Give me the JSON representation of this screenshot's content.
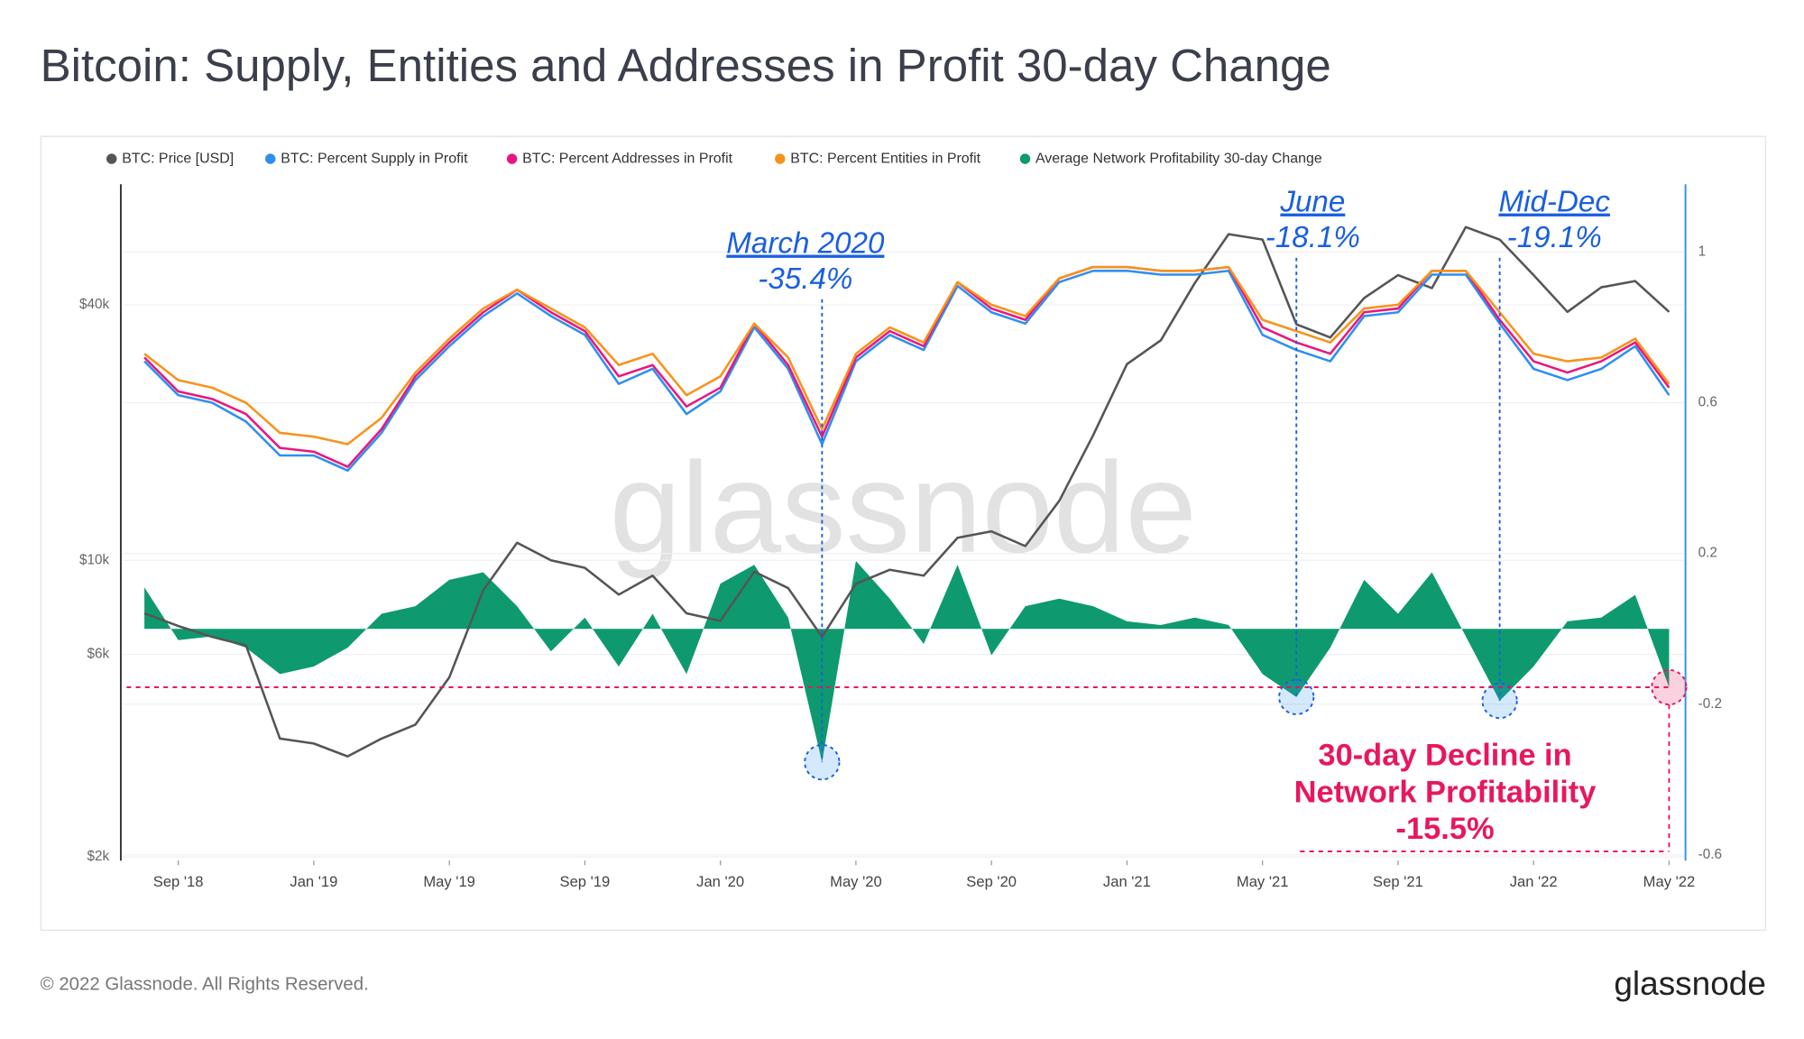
{
  "header": {
    "title": "Bitcoin: Supply, Entities and Addresses in Profit 30-day Change"
  },
  "chart_data": {
    "type": "line",
    "watermark": "glassnode",
    "x": [
      "2018-08",
      "2018-09",
      "2018-10",
      "2018-11",
      "2018-12",
      "2019-01",
      "2019-02",
      "2019-03",
      "2019-04",
      "2019-05",
      "2019-06",
      "2019-07",
      "2019-08",
      "2019-09",
      "2019-10",
      "2019-11",
      "2019-12",
      "2020-01",
      "2020-02",
      "2020-03",
      "2020-04",
      "2020-05",
      "2020-06",
      "2020-07",
      "2020-08",
      "2020-09",
      "2020-10",
      "2020-11",
      "2020-12",
      "2021-01",
      "2021-02",
      "2021-03",
      "2021-04",
      "2021-05",
      "2021-06",
      "2021-07",
      "2021-08",
      "2021-09",
      "2021-10",
      "2021-11",
      "2021-12",
      "2022-01",
      "2022-02",
      "2022-03",
      "2022-04",
      "2022-05"
    ],
    "xticks": [
      {
        "value": "2018-09",
        "label": "Sep '18"
      },
      {
        "value": "2019-01",
        "label": "Jan '19"
      },
      {
        "value": "2019-05",
        "label": "May '19"
      },
      {
        "value": "2019-09",
        "label": "Sep '19"
      },
      {
        "value": "2020-01",
        "label": "Jan '20"
      },
      {
        "value": "2020-05",
        "label": "May '20"
      },
      {
        "value": "2020-09",
        "label": "Sep '20"
      },
      {
        "value": "2021-01",
        "label": "Jan '21"
      },
      {
        "value": "2021-05",
        "label": "May '21"
      },
      {
        "value": "2021-09",
        "label": "Sep '21"
      },
      {
        "value": "2022-01",
        "label": "Jan '22"
      },
      {
        "value": "2022-05",
        "label": "May '22"
      }
    ],
    "ylog": true,
    "ylim": [
      1960,
      77000
    ],
    "yticks": [
      {
        "value": 2000,
        "label": "$2k"
      },
      {
        "value": 6000,
        "label": "$6k"
      },
      {
        "value": 10000,
        "label": "$10k"
      },
      {
        "value": 40000,
        "label": "$40k"
      }
    ],
    "y2lim": [
      -0.615,
      1.18
    ],
    "y2ticks": [
      -0.6,
      -0.2,
      0.2,
      0.6,
      1
    ],
    "grid": true,
    "series": [
      {
        "name": "BTC: Price [USD]",
        "color": "#555555",
        "type": "line",
        "values": [
          7500,
          7000,
          6600,
          6300,
          3800,
          3700,
          3450,
          3800,
          4100,
          5300,
          8500,
          11000,
          10000,
          9600,
          8300,
          9200,
          7500,
          7200,
          9400,
          8600,
          6600,
          8800,
          9500,
          9200,
          11300,
          11700,
          10800,
          13800,
          19700,
          29000,
          33000,
          45000,
          58700,
          57000,
          36000,
          33500,
          41500,
          47000,
          43800,
          61000,
          57000,
          47000,
          38500,
          44000,
          45500,
          38500
        ]
      },
      {
        "name": "BTC: Percent Supply in Profit",
        "color": "#2f8ff0",
        "type": "line",
        "axis": "y2",
        "values": [
          0.71,
          0.62,
          0.6,
          0.55,
          0.46,
          0.46,
          0.42,
          0.52,
          0.66,
          0.75,
          0.83,
          0.89,
          0.83,
          0.78,
          0.65,
          0.69,
          0.57,
          0.63,
          0.8,
          0.69,
          0.49,
          0.71,
          0.78,
          0.74,
          0.91,
          0.84,
          0.81,
          0.92,
          0.95,
          0.95,
          0.94,
          0.94,
          0.95,
          0.78,
          0.74,
          0.71,
          0.83,
          0.84,
          0.94,
          0.94,
          0.81,
          0.69,
          0.66,
          0.69,
          0.75,
          0.62
        ]
      },
      {
        "name": "BTC: Percent Addresses in Profit",
        "color": "#e8177f",
        "type": "line",
        "axis": "y2",
        "values": [
          0.72,
          0.63,
          0.61,
          0.57,
          0.48,
          0.47,
          0.43,
          0.53,
          0.67,
          0.76,
          0.84,
          0.9,
          0.84,
          0.79,
          0.67,
          0.7,
          0.59,
          0.64,
          0.81,
          0.7,
          0.51,
          0.72,
          0.79,
          0.75,
          0.92,
          0.85,
          0.82,
          0.93,
          0.96,
          0.96,
          0.95,
          0.95,
          0.96,
          0.8,
          0.76,
          0.73,
          0.84,
          0.85,
          0.95,
          0.95,
          0.82,
          0.71,
          0.68,
          0.71,
          0.76,
          0.64
        ]
      },
      {
        "name": "BTC: Percent Entities in Profit",
        "color": "#f7931a",
        "type": "line",
        "axis": "y2",
        "values": [
          0.73,
          0.66,
          0.64,
          0.6,
          0.52,
          0.51,
          0.49,
          0.56,
          0.68,
          0.77,
          0.85,
          0.9,
          0.85,
          0.8,
          0.7,
          0.73,
          0.62,
          0.67,
          0.81,
          0.72,
          0.53,
          0.73,
          0.8,
          0.76,
          0.92,
          0.86,
          0.83,
          0.93,
          0.96,
          0.96,
          0.95,
          0.95,
          0.96,
          0.82,
          0.79,
          0.76,
          0.85,
          0.86,
          0.95,
          0.95,
          0.84,
          0.73,
          0.71,
          0.72,
          0.77,
          0.65
        ]
      },
      {
        "name": "Average Network Profitability 30-day Change",
        "color": "#0e9a6e",
        "type": "area",
        "axis": "y2",
        "values": [
          0.11,
          -0.03,
          -0.02,
          -0.05,
          -0.12,
          -0.1,
          -0.05,
          0.04,
          0.06,
          0.13,
          0.15,
          0.06,
          -0.06,
          0.03,
          -0.1,
          0.04,
          -0.12,
          0.12,
          0.17,
          0.03,
          -0.354,
          0.18,
          0.08,
          -0.04,
          0.17,
          -0.07,
          0.06,
          0.08,
          0.06,
          0.02,
          0.01,
          0.03,
          0.01,
          -0.12,
          -0.181,
          -0.05,
          0.13,
          0.04,
          0.15,
          -0.02,
          -0.191,
          -0.1,
          0.02,
          0.03,
          0.09,
          -0.155
        ]
      }
    ],
    "annotations": [
      {
        "lines": [
          "March 2020",
          "-35.4%"
        ]
      },
      {
        "lines": [
          "June",
          "-18.1%"
        ]
      },
      {
        "lines": [
          "Mid-Dec",
          "-19.1%"
        ]
      },
      {
        "lines": [
          "30-day Decline in",
          "Network Profitability",
          "-15.5%"
        ]
      }
    ]
  },
  "footer": {
    "copyright": "© 2022 Glassnode. All Rights Reserved.",
    "logo": "glassnode"
  }
}
